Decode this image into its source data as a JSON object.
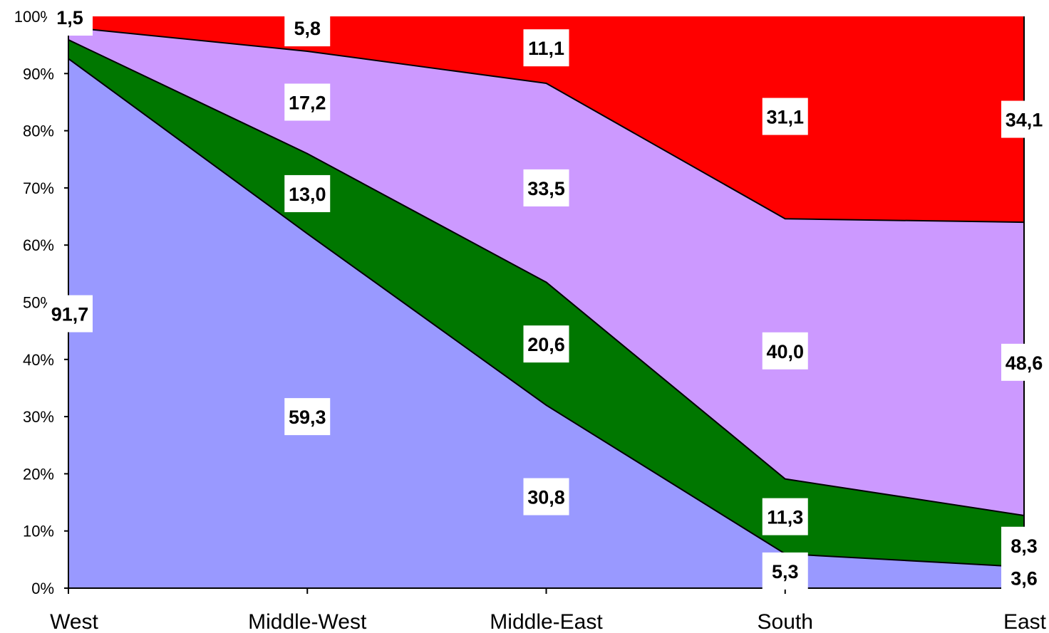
{
  "chart_data": {
    "type": "area",
    "stacked": true,
    "percent": true,
    "title": "",
    "xlabel": "",
    "ylabel": "",
    "categories": [
      "West",
      "Middle-West",
      "Middle-East",
      "South",
      "East"
    ],
    "ylim": [
      0,
      100
    ],
    "yticks": [
      "0%",
      "10%",
      "20%",
      "30%",
      "40%",
      "50%",
      "60%",
      "70%",
      "80%",
      "90%",
      "100%"
    ],
    "grid": false,
    "legend": "none",
    "series": [
      {
        "color": "#9999ff",
        "values": [
          92.6,
          62.0,
          32.0,
          6.0,
          3.7
        ],
        "labels": [
          "91,7",
          "59,3",
          "30,8",
          "5,3",
          "3,6"
        ]
      },
      {
        "color": "#007700",
        "values": [
          3.3,
          14.0,
          21.5,
          13.1,
          9.0
        ],
        "labels": [
          "",
          "13,0",
          "20,6",
          "11,3",
          "8,3"
        ]
      },
      {
        "color": "#cc99ff",
        "values": [
          2.2,
          17.9,
          34.8,
          45.5,
          51.3
        ],
        "labels": [
          "",
          "17,2",
          "33,5",
          "40,0",
          "48,6"
        ]
      },
      {
        "color": "#ff0000",
        "values": [
          1.9,
          6.1,
          11.7,
          35.4,
          36.0
        ],
        "labels": [
          "1,5",
          "5,8",
          "11,1",
          "31,1",
          "34,1"
        ]
      }
    ],
    "label_positions_pct": [
      [
        48.0,
        30.0,
        16.0,
        3.0,
        1.8
      ],
      [
        null,
        69.0,
        42.7,
        12.5,
        7.5
      ],
      [
        null,
        85.0,
        70.0,
        41.5,
        39.5
      ],
      [
        100.5,
        98.0,
        94.5,
        82.5,
        82.0
      ]
    ]
  }
}
